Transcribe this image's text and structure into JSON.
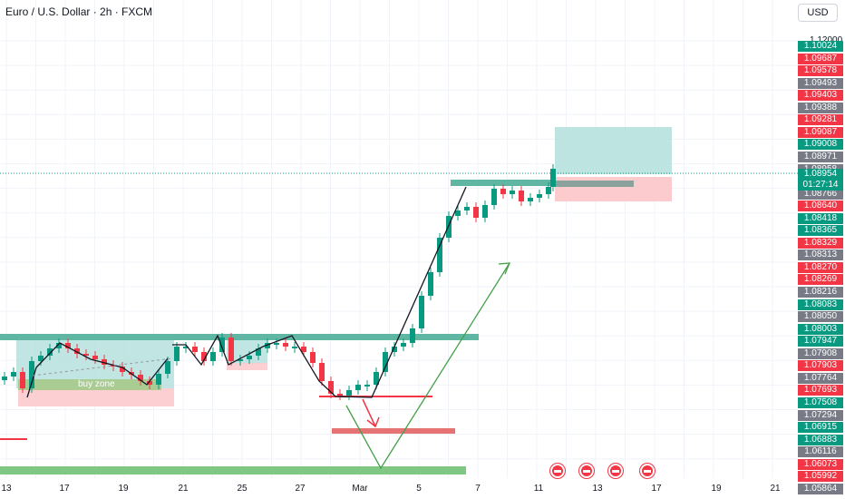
{
  "header": {
    "title": "Euro / U.S. Dollar · 2h · FXCM",
    "currency_button": "USD"
  },
  "price_scale": {
    "top_tick": "1.12000",
    "current_price": "1.08954",
    "countdown": "01:27:14",
    "labels": [
      {
        "text": "1.10024",
        "color": "green"
      },
      {
        "text": "1.09687",
        "color": "red"
      },
      {
        "text": "1.09578",
        "color": "red"
      },
      {
        "text": "1.09493",
        "color": "gray"
      },
      {
        "text": "1.09403",
        "color": "red"
      },
      {
        "text": "1.09388",
        "color": "gray"
      },
      {
        "text": "1.09281",
        "color": "red"
      },
      {
        "text": "1.09087",
        "color": "red"
      },
      {
        "text": "1.09008",
        "color": "green"
      },
      {
        "text": "1.08971",
        "color": "gray"
      },
      {
        "text": "1.08958",
        "color": "gray"
      },
      {
        "text": "1.08887",
        "color": "gray"
      },
      {
        "text": "1.08766",
        "color": "gray"
      },
      {
        "text": "1.08640",
        "color": "red"
      },
      {
        "text": "1.08418",
        "color": "green"
      },
      {
        "text": "1.08365",
        "color": "green"
      },
      {
        "text": "1.08329",
        "color": "red"
      },
      {
        "text": "1.08313",
        "color": "gray"
      },
      {
        "text": "1.08270",
        "color": "red"
      },
      {
        "text": "1.08269",
        "color": "red"
      },
      {
        "text": "1.08216",
        "color": "gray"
      },
      {
        "text": "1.08083",
        "color": "green"
      },
      {
        "text": "1.08050",
        "color": "gray"
      },
      {
        "text": "1.08003",
        "color": "green"
      },
      {
        "text": "1.07947",
        "color": "green"
      },
      {
        "text": "1.07908",
        "color": "gray"
      },
      {
        "text": "1.07903",
        "color": "red"
      },
      {
        "text": "1.07764",
        "color": "gray"
      },
      {
        "text": "1.07693",
        "color": "red"
      },
      {
        "text": "1.07508",
        "color": "green"
      },
      {
        "text": "1.07294",
        "color": "gray"
      },
      {
        "text": "1.06915",
        "color": "green"
      },
      {
        "text": "1.06883",
        "color": "green"
      },
      {
        "text": "1.06116",
        "color": "gray"
      },
      {
        "text": "1.06073",
        "color": "red"
      },
      {
        "text": "1.05992",
        "color": "red"
      },
      {
        "text": "1.05864",
        "color": "gray"
      }
    ]
  },
  "time_axis": {
    "labels": [
      "13",
      "17",
      "19",
      "21",
      "25",
      "27",
      "Mar",
      "5",
      "7",
      "11",
      "13",
      "17",
      "19",
      "21"
    ]
  },
  "annotations": {
    "buy_zone_label": "buy zone"
  },
  "events": [
    {
      "icon": "us-flag-event-icon"
    },
    {
      "icon": "us-flag-event-icon"
    },
    {
      "icon": "us-flag-event-icon"
    },
    {
      "icon": "us-flag-event-icon"
    }
  ],
  "colors": {
    "bull": "#089981",
    "bear": "#f23645",
    "zone_green": "#4caf50",
    "zone_red": "#f5a3a9",
    "target_green": "#b2dfdb",
    "stop_red": "#fccbcd",
    "trend_line": "#131722",
    "projection_green": "#43a047"
  }
}
